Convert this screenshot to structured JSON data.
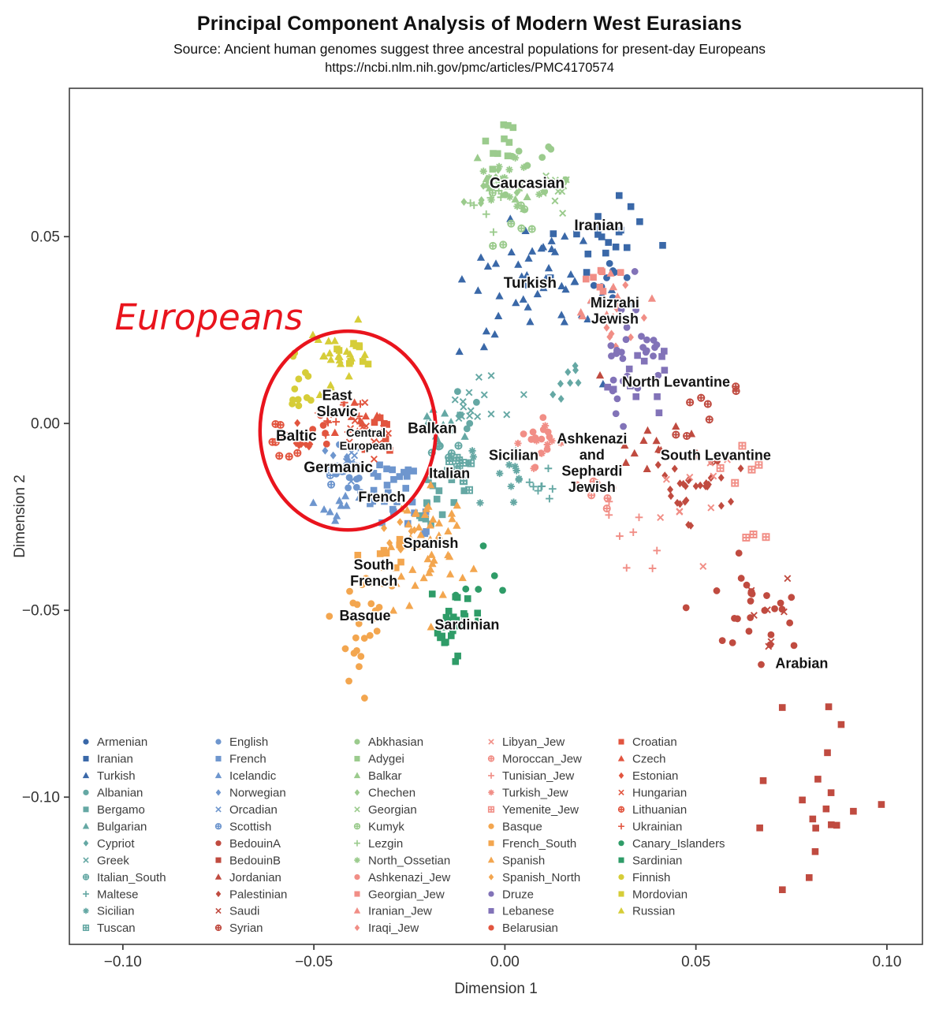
{
  "header": {
    "title": "Principal Component Analysis of Modern West Eurasians",
    "subtitle": "Source: Ancient human genomes suggest three ancestral populations for present-day Europeans",
    "source_url": "https://ncbi.nlm.nih.gov/pmc/articles/PMC4170574"
  },
  "chart_data": {
    "type": "scatter",
    "title": "Principal Component Analysis of Modern West Eurasians",
    "xlabel": "Dimension 1",
    "ylabel": "Dimension 2",
    "xlim": [
      -0.114,
      0.1093
    ],
    "ylim": [
      -0.1394,
      0.0897
    ],
    "grid": false,
    "legend_position": "bottom-left-inside",
    "xticks": [
      {
        "value": -0.1,
        "label": "−0.10"
      },
      {
        "value": -0.05,
        "label": "−0.05"
      },
      {
        "value": 0.0,
        "label": "0.00"
      },
      {
        "value": 0.05,
        "label": "0.05"
      },
      {
        "value": 0.1,
        "label": "0.10"
      }
    ],
    "yticks": [
      {
        "value": 0.05,
        "label": "0.05"
      },
      {
        "value": 0.0,
        "label": "0.00"
      },
      {
        "value": -0.05,
        "label": "−0.05"
      },
      {
        "value": -0.1,
        "label": "−0.10"
      }
    ],
    "palette": {
      "darkblue": "#3a68a8",
      "teal": "#65a8a4",
      "blue": "#6e96ce",
      "red": "#c04b40",
      "green": "#9bcb8d",
      "salmon": "#f18e86",
      "orange": "#f3a64f",
      "purple": "#8273b8",
      "redorange": "#e2553f",
      "darkgreen": "#2f9c68",
      "yellow": "#d6cd38"
    },
    "populations": [
      {
        "name": "Armenian",
        "color": "darkblue",
        "shape": "circle",
        "x": 0.0258,
        "y": 0.0371,
        "sx": 0.0035,
        "sy": 0.0035,
        "n": 10
      },
      {
        "name": "Iranian",
        "color": "darkblue",
        "shape": "square",
        "x": 0.0231,
        "y": 0.0498,
        "sx": 0.0065,
        "sy": 0.005,
        "n": 20
      },
      {
        "name": "Turkish",
        "color": "darkblue",
        "shape": "triangle",
        "x": 0.0087,
        "y": 0.0371,
        "sx": 0.009,
        "sy": 0.0095,
        "n": 48
      },
      {
        "name": "Albanian",
        "color": "teal",
        "shape": "circle",
        "x": -0.011,
        "y": 0.0044,
        "sx": 0.0025,
        "sy": 0.0025,
        "n": 6
      },
      {
        "name": "Bergamo",
        "color": "teal",
        "shape": "square",
        "x": -0.0176,
        "y": -0.0203,
        "sx": 0.004,
        "sy": 0.004,
        "n": 14
      },
      {
        "name": "Bulgarian",
        "color": "teal",
        "shape": "triangle",
        "x": -0.0182,
        "y": -0.0004,
        "sx": 0.003,
        "sy": 0.003,
        "n": 10
      },
      {
        "name": "Cypriot",
        "color": "teal",
        "shape": "diamond",
        "x": 0.0163,
        "y": 0.0103,
        "sx": 0.0025,
        "sy": 0.0025,
        "n": 8
      },
      {
        "name": "Greek",
        "color": "teal",
        "shape": "x",
        "x": -0.0089,
        "y": 0.0044,
        "sx": 0.005,
        "sy": 0.005,
        "n": 16
      },
      {
        "name": "Italian_South",
        "color": "teal",
        "shape": "circleplus",
        "x": -0.0124,
        "y": -0.0068,
        "sx": 0.0028,
        "sy": 0.0028,
        "n": 7
      },
      {
        "name": "Maltese",
        "color": "teal",
        "shape": "plus",
        "x": 0.0107,
        "y": -0.0167,
        "sx": 0.0028,
        "sy": 0.0028,
        "n": 8
      },
      {
        "name": "Sicilian",
        "color": "teal",
        "shape": "asterisk",
        "x": 0.001,
        "y": -0.0131,
        "sx": 0.005,
        "sy": 0.005,
        "n": 13
      },
      {
        "name": "Tuscan",
        "color": "teal",
        "shape": "squareplus",
        "x": -0.012,
        "y": -0.0124,
        "sx": 0.003,
        "sy": 0.003,
        "n": 11
      },
      {
        "name": "English",
        "color": "blue",
        "shape": "circle",
        "x": -0.04,
        "y": -0.0135,
        "sx": 0.0028,
        "sy": 0.0028,
        "n": 12
      },
      {
        "name": "French",
        "color": "blue",
        "shape": "square",
        "x": -0.0295,
        "y": -0.0188,
        "sx": 0.0055,
        "sy": 0.0045,
        "n": 28
      },
      {
        "name": "Icelandic",
        "color": "blue",
        "shape": "triangle",
        "x": -0.045,
        "y": -0.0209,
        "sx": 0.0035,
        "sy": 0.0035,
        "n": 10
      },
      {
        "name": "Norwegian",
        "color": "blue",
        "shape": "diamond",
        "x": -0.0409,
        "y": -0.0082,
        "sx": 0.0028,
        "sy": 0.0028,
        "n": 10
      },
      {
        "name": "Orcadian",
        "color": "blue",
        "shape": "x",
        "x": -0.0398,
        "y": -0.011,
        "sx": 0.002,
        "sy": 0.002,
        "n": 8
      },
      {
        "name": "Scottish",
        "color": "blue",
        "shape": "circleplus",
        "x": -0.044,
        "y": -0.0124,
        "sx": 0.0022,
        "sy": 0.0022,
        "n": 6
      },
      {
        "name": "BedouinA",
        "color": "red",
        "shape": "circle",
        "x": 0.0665,
        "y": -0.0483,
        "sx": 0.007,
        "sy": 0.008,
        "n": 26
      },
      {
        "name": "BedouinB",
        "color": "red",
        "shape": "square",
        "x": 0.082,
        "y": -0.0947,
        "sx": 0.007,
        "sy": 0.012,
        "n": 19
      },
      {
        "name": "Jordanian",
        "color": "red",
        "shape": "triangle",
        "x": 0.0417,
        "y": -0.0051,
        "sx": 0.006,
        "sy": 0.009,
        "n": 12
      },
      {
        "name": "Palestinian",
        "color": "red",
        "shape": "diamond",
        "x": 0.05,
        "y": -0.0167,
        "sx": 0.005,
        "sy": 0.005,
        "n": 30
      },
      {
        "name": "Saudi",
        "color": "red",
        "shape": "x",
        "x": 0.0692,
        "y": -0.0504,
        "sx": 0.004,
        "sy": 0.004,
        "n": 7
      },
      {
        "name": "Syrian",
        "color": "red",
        "shape": "circleplus",
        "x": 0.0531,
        "y": 0.0023,
        "sx": 0.008,
        "sy": 0.005,
        "n": 9
      },
      {
        "name": "Abkhasian",
        "color": "green",
        "shape": "circle",
        "x": 0.0087,
        "y": 0.0698,
        "sx": 0.005,
        "sy": 0.005,
        "n": 9
      },
      {
        "name": "Adygei",
        "color": "green",
        "shape": "square",
        "x": -0.0006,
        "y": 0.0741,
        "sx": 0.004,
        "sy": 0.005,
        "n": 10
      },
      {
        "name": "Balkar",
        "color": "green",
        "shape": "triangle",
        "x": 0.0004,
        "y": 0.065,
        "sx": 0.004,
        "sy": 0.004,
        "n": 10
      },
      {
        "name": "Chechen",
        "color": "green",
        "shape": "diamond",
        "x": -0.0037,
        "y": 0.0629,
        "sx": 0.003,
        "sy": 0.003,
        "n": 9
      },
      {
        "name": "Georgian",
        "color": "green",
        "shape": "x",
        "x": 0.013,
        "y": 0.0624,
        "sx": 0.0035,
        "sy": 0.0035,
        "n": 10
      },
      {
        "name": "Kumyk",
        "color": "green",
        "shape": "circleplus",
        "x": 0.0014,
        "y": 0.054,
        "sx": 0.0055,
        "sy": 0.0055,
        "n": 8
      },
      {
        "name": "Lezgin",
        "color": "green",
        "shape": "plus",
        "x": -0.0031,
        "y": 0.0587,
        "sx": 0.0035,
        "sy": 0.0035,
        "n": 8
      },
      {
        "name": "North_Ossetian",
        "color": "green",
        "shape": "asterisk",
        "x": 0.0014,
        "y": 0.0645,
        "sx": 0.005,
        "sy": 0.0045,
        "n": 15
      },
      {
        "name": "Ashkenazi_Jew",
        "color": "salmon",
        "shape": "circle",
        "x": 0.0097,
        "y": -0.0034,
        "sx": 0.004,
        "sy": 0.004,
        "n": 13
      },
      {
        "name": "Georgian_Jew",
        "color": "salmon",
        "shape": "square",
        "x": 0.0246,
        "y": 0.0376,
        "sx": 0.003,
        "sy": 0.003,
        "n": 8
      },
      {
        "name": "Iranian_Jew",
        "color": "salmon",
        "shape": "triangle",
        "x": 0.0273,
        "y": 0.0308,
        "sx": 0.004,
        "sy": 0.004,
        "n": 9
      },
      {
        "name": "Iraqi_Jew",
        "color": "salmon",
        "shape": "diamond",
        "x": 0.0314,
        "y": 0.0276,
        "sx": 0.004,
        "sy": 0.004,
        "n": 9
      },
      {
        "name": "Libyan_Jew",
        "color": "salmon",
        "shape": "x",
        "x": 0.0469,
        "y": -0.0188,
        "sx": 0.006,
        "sy": 0.007,
        "n": 10
      },
      {
        "name": "Moroccan_Jew",
        "color": "salmon",
        "shape": "circleplus",
        "x": 0.0246,
        "y": -0.0177,
        "sx": 0.004,
        "sy": 0.004,
        "n": 7
      },
      {
        "name": "Tunisian_Jew",
        "color": "salmon",
        "shape": "plus",
        "x": 0.0349,
        "y": -0.0287,
        "sx": 0.004,
        "sy": 0.005,
        "n": 8
      },
      {
        "name": "Turkish_Jew",
        "color": "salmon",
        "shape": "asterisk",
        "x": 0.0128,
        "y": -0.0051,
        "sx": 0.004,
        "sy": 0.004,
        "n": 8
      },
      {
        "name": "Yemenite_Jew",
        "color": "salmon",
        "shape": "squareplus",
        "x": 0.0614,
        "y": -0.0219,
        "sx": 0.004,
        "sy": 0.007,
        "n": 8
      },
      {
        "name": "Basque",
        "color": "orange",
        "shape": "circle",
        "x": -0.0374,
        "y": -0.0536,
        "sx": 0.0035,
        "sy": 0.008,
        "n": 24
      },
      {
        "name": "French_South",
        "color": "orange",
        "shape": "square",
        "x": -0.0316,
        "y": -0.0346,
        "sx": 0.0035,
        "sy": 0.0035,
        "n": 12
      },
      {
        "name": "Spanish",
        "color": "orange",
        "shape": "triangle",
        "x": -0.0196,
        "y": -0.0335,
        "sx": 0.0065,
        "sy": 0.0075,
        "n": 48
      },
      {
        "name": "Spanish_North",
        "color": "orange",
        "shape": "diamond",
        "x": -0.0264,
        "y": -0.0293,
        "sx": 0.003,
        "sy": 0.003,
        "n": 8
      },
      {
        "name": "Druze",
        "color": "purple",
        "shape": "circle",
        "x": 0.0345,
        "y": 0.0171,
        "sx": 0.005,
        "sy": 0.009,
        "n": 30
      },
      {
        "name": "Lebanese",
        "color": "purple",
        "shape": "square",
        "x": 0.0355,
        "y": 0.0097,
        "sx": 0.005,
        "sy": 0.005,
        "n": 12
      },
      {
        "name": "Belarusian",
        "color": "redorange",
        "shape": "circle",
        "x": -0.0469,
        "y": -0.0023,
        "sx": 0.0018,
        "sy": 0.0018,
        "n": 5
      },
      {
        "name": "Croatian",
        "color": "redorange",
        "shape": "square",
        "x": -0.0333,
        "y": -0.0023,
        "sx": 0.003,
        "sy": 0.003,
        "n": 10
      },
      {
        "name": "Czech",
        "color": "redorange",
        "shape": "triangle",
        "x": -0.0382,
        "y": 0.0008,
        "sx": 0.003,
        "sy": 0.003,
        "n": 10
      },
      {
        "name": "Estonian",
        "color": "redorange",
        "shape": "diamond",
        "x": -0.0527,
        "y": -0.004,
        "sx": 0.0022,
        "sy": 0.0022,
        "n": 8
      },
      {
        "name": "Hungarian",
        "color": "redorange",
        "shape": "x",
        "x": -0.0353,
        "y": -0.0019,
        "sx": 0.004,
        "sy": 0.003,
        "n": 16
      },
      {
        "name": "Lithuanian",
        "color": "redorange",
        "shape": "circleplus",
        "x": -0.0568,
        "y": -0.0042,
        "sx": 0.0022,
        "sy": 0.0022,
        "n": 9
      },
      {
        "name": "Ukrainian",
        "color": "redorange",
        "shape": "plus",
        "x": -0.0436,
        "y": 0.0034,
        "sx": 0.003,
        "sy": 0.003,
        "n": 12
      },
      {
        "name": "Canary_Islanders",
        "color": "darkgreen",
        "shape": "circle",
        "x": -0.0079,
        "y": -0.0409,
        "sx": 0.003,
        "sy": 0.006,
        "n": 6
      },
      {
        "name": "Sardinian",
        "color": "darkgreen",
        "shape": "square",
        "x": -0.013,
        "y": -0.0542,
        "sx": 0.0035,
        "sy": 0.0045,
        "n": 27
      },
      {
        "name": "Finnish",
        "color": "yellow",
        "shape": "circle",
        "x": -0.0533,
        "y": 0.0097,
        "sx": 0.0025,
        "sy": 0.0045,
        "n": 12
      },
      {
        "name": "Mordovian",
        "color": "yellow",
        "shape": "square",
        "x": -0.0395,
        "y": 0.0198,
        "sx": 0.003,
        "sy": 0.003,
        "n": 10
      },
      {
        "name": "Russian",
        "color": "yellow",
        "shape": "triangle",
        "x": -0.0436,
        "y": 0.016,
        "sx": 0.0045,
        "sy": 0.0045,
        "n": 22
      }
    ],
    "legend_columns": [
      [
        "Armenian",
        "Iranian",
        "Turkish",
        "Albanian",
        "Bergamo",
        "Bulgarian",
        "Cypriot",
        "Greek",
        "Italian_South",
        "Maltese",
        "Sicilian",
        "Tuscan"
      ],
      [
        "English",
        "French",
        "Icelandic",
        "Norwegian",
        "Orcadian",
        "Scottish",
        "BedouinA",
        "BedouinB",
        "Jordanian",
        "Palestinian",
        "Saudi",
        "Syrian"
      ],
      [
        "Abkhasian",
        "Adygei",
        "Balkar",
        "Chechen",
        "Georgian",
        "Kumyk",
        "Lezgin",
        "North_Ossetian",
        "Ashkenazi_Jew",
        "Georgian_Jew",
        "Iranian_Jew",
        "Iraqi_Jew"
      ],
      [
        "Libyan_Jew",
        "Moroccan_Jew",
        "Tunisian_Jew",
        "Turkish_Jew",
        "Yemenite_Jew",
        "Basque",
        "French_South",
        "Spanish",
        "Spanish_North",
        "Druze",
        "Lebanese",
        "Belarusian"
      ],
      [
        "Croatian",
        "Czech",
        "Estonian",
        "Hungarian",
        "Lithuanian",
        "Ukrainian",
        "Canary_Islanders",
        "Sardinian",
        "Finnish",
        "Mordovian",
        "Russian"
      ]
    ],
    "annotations": [
      {
        "lines": [
          "Caucasian"
        ],
        "x": 0.0058,
        "y": 0.0645,
        "size": 19
      },
      {
        "lines": [
          "Iranian"
        ],
        "x": 0.0246,
        "y": 0.0532,
        "size": 19
      },
      {
        "lines": [
          "Turkish"
        ],
        "x": 0.0066,
        "y": 0.0378,
        "size": 19
      },
      {
        "lines": [
          "Mizrahi",
          "Jewish"
        ],
        "x": 0.0288,
        "y": 0.0303,
        "size": 18
      },
      {
        "lines": [
          "North Levantine"
        ],
        "x": 0.0448,
        "y": 0.0112,
        "size": 18
      },
      {
        "lines": [
          "South Levantine"
        ],
        "x": 0.0552,
        "y": -0.0084,
        "size": 18
      },
      {
        "lines": [
          "Ashkenazi",
          "and",
          "Sephardi",
          "Jewish"
        ],
        "x": 0.0228,
        "y": -0.0105,
        "size": 18
      },
      {
        "lines": [
          "Balkan"
        ],
        "x": -0.019,
        "y": -0.0011,
        "size": 19
      },
      {
        "lines": [
          "Sicilian"
        ],
        "x": 0.0023,
        "y": -0.0084,
        "size": 18
      },
      {
        "lines": [
          "Italian"
        ],
        "x": -0.0145,
        "y": -0.0133,
        "size": 18
      },
      {
        "lines": [
          "East",
          "Slavic"
        ],
        "x": -0.0439,
        "y": 0.0055,
        "size": 18
      },
      {
        "lines": [
          "Baltic"
        ],
        "x": -0.0546,
        "y": -0.0032,
        "size": 19
      },
      {
        "lines": [
          "Central",
          "European"
        ],
        "x": -0.0364,
        "y": -0.0042,
        "size": 14.5
      },
      {
        "lines": [
          "Germanic"
        ],
        "x": -0.0436,
        "y": -0.0116,
        "size": 19
      },
      {
        "lines": [
          "French"
        ],
        "x": -0.0322,
        "y": -0.0196,
        "size": 18
      },
      {
        "lines": [
          "Spanish"
        ],
        "x": -0.0194,
        "y": -0.0319,
        "size": 18
      },
      {
        "lines": [
          "South",
          "French"
        ],
        "x": -0.0343,
        "y": -0.0399,
        "size": 18
      },
      {
        "lines": [
          "Basque"
        ],
        "x": -0.0366,
        "y": -0.0513,
        "size": 18
      },
      {
        "lines": [
          "Sardinian"
        ],
        "x": -0.0099,
        "y": -0.0538,
        "size": 18
      },
      {
        "lines": [
          "Arabian"
        ],
        "x": 0.0777,
        "y": -0.0641,
        "size": 18
      }
    ],
    "highlight": {
      "label": "Europeans",
      "label_x": -0.0775,
      "label_y": 0.0251,
      "color": "#e9141d",
      "ellipse": {
        "cx": -0.0411,
        "cy": -0.0019,
        "rx": 0.023,
        "ry": 0.0266
      }
    }
  }
}
